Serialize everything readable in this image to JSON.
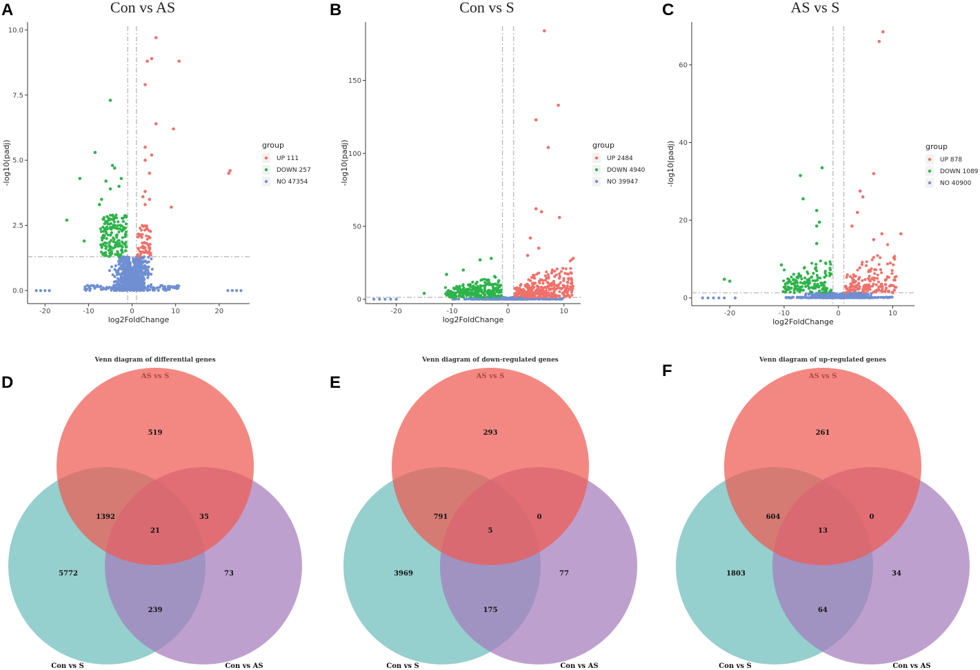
{
  "chart_data": [
    {
      "type": "scatter",
      "panel": "A",
      "title": "Con vs AS",
      "xlabel": "log2FoldChange",
      "ylabel": "-log10(padj)",
      "xlim": [
        -24,
        27
      ],
      "ylim": [
        -0.5,
        10.3
      ],
      "xticks": [
        -20,
        -10,
        0,
        10,
        20
      ],
      "yticks": [
        0.0,
        2.5,
        5.0,
        7.5,
        10.0
      ],
      "ytick_labels": [
        "0.0",
        "2.5",
        "5.0",
        "7.5",
        "10.0"
      ],
      "xtick_labels": [
        "-20",
        "-10",
        "0",
        "10",
        "20"
      ],
      "threshold_x": [
        -1,
        1
      ],
      "threshold_y": 1.3,
      "legend_title": "group",
      "legend": [
        {
          "label": "UP 111",
          "color": "#f0706a"
        },
        {
          "label": "DOWN 257",
          "color": "#2db34a"
        },
        {
          "label": "NO 47354",
          "color": "#6f8fd2"
        }
      ],
      "highlight_points": {
        "up": [
          [
            5.5,
            9.7
          ],
          [
            3.5,
            8.8
          ],
          [
            4.5,
            8.9
          ],
          [
            10.8,
            8.8
          ],
          [
            3,
            7.9
          ],
          [
            9.5,
            6.2
          ],
          [
            5.5,
            6.4
          ],
          [
            3,
            5.5
          ],
          [
            4.5,
            5.2
          ],
          [
            3,
            5
          ],
          [
            4,
            4.5
          ],
          [
            22.5,
            4.6
          ],
          [
            22.2,
            4.5
          ],
          [
            9,
            3.2
          ],
          [
            3,
            3.8
          ],
          [
            2.5,
            3.6
          ],
          [
            4,
            3.5
          ],
          [
            3,
            3.3
          ]
        ],
        "down": [
          [
            -5,
            7.3
          ],
          [
            -8.5,
            5.3
          ],
          [
            -4.5,
            4.8
          ],
          [
            -4,
            4.7
          ],
          [
            -12,
            4.3
          ],
          [
            -2.5,
            4.3
          ],
          [
            -6,
            4.2
          ],
          [
            -3,
            4
          ],
          [
            -5,
            3.9
          ],
          [
            -15,
            2.7
          ],
          [
            -11,
            1.9
          ],
          [
            -7,
            3.5
          ],
          [
            -7.5,
            3.3
          ]
        ],
        "no_outliers": [
          [
            -20,
            0
          ],
          [
            -21,
            0
          ],
          [
            -22,
            0
          ],
          [
            -19,
            0
          ],
          [
            22,
            0
          ],
          [
            23,
            0
          ],
          [
            24,
            0
          ],
          [
            25,
            0
          ]
        ]
      }
    },
    {
      "type": "scatter",
      "panel": "B",
      "title": "Con vs S",
      "xlabel": "log2FoldChange",
      "ylabel": "-log10(padj)",
      "xlim": [
        -25.5,
        13
      ],
      "ylim": [
        -3,
        190
      ],
      "xticks": [
        -20,
        -10,
        0,
        10
      ],
      "yticks": [
        0,
        50,
        100,
        150
      ],
      "ytick_labels": [
        "0",
        "50",
        "100",
        "150"
      ],
      "xtick_labels": [
        "-20",
        "-10",
        "0",
        "10"
      ],
      "threshold_x": [
        -1,
        1
      ],
      "threshold_y": 1.3,
      "legend_title": "group",
      "legend": [
        {
          "label": "UP 2484",
          "color": "#f0706a"
        },
        {
          "label": "DOWN 4940",
          "color": "#2db34a"
        },
        {
          "label": "NO 39947",
          "color": "#6f8fd2"
        }
      ],
      "highlight_points": {
        "up": [
          [
            6.5,
            184
          ],
          [
            9,
            133
          ],
          [
            5,
            123
          ],
          [
            7.2,
            104
          ],
          [
            5,
            62
          ],
          [
            6,
            60
          ],
          [
            9.2,
            56
          ],
          [
            4,
            42
          ],
          [
            5.5,
            35
          ],
          [
            3.5,
            30
          ]
        ],
        "down": [
          [
            -11,
            17
          ],
          [
            -5,
            27
          ],
          [
            -3,
            28
          ],
          [
            -15,
            4
          ],
          [
            -8,
            20
          ]
        ],
        "no_outliers": [
          [
            -22,
            0
          ],
          [
            -23,
            0
          ],
          [
            -24,
            0
          ],
          [
            -21,
            0
          ],
          [
            -20,
            0
          ]
        ]
      }
    },
    {
      "type": "scatter",
      "panel": "C",
      "title": "AS vs S",
      "xlabel": "log2FoldChange",
      "ylabel": "-log10(padj)",
      "xlim": [
        -27,
        14
      ],
      "ylim": [
        -2,
        71
      ],
      "xticks": [
        -20,
        -10,
        0,
        10
      ],
      "yticks": [
        0,
        20,
        40,
        60
      ],
      "ytick_labels": [
        "0",
        "20",
        "40",
        "60"
      ],
      "xtick_labels": [
        "-20",
        "-10",
        "0",
        "10"
      ],
      "threshold_x": [
        -1,
        1
      ],
      "threshold_y": 1.3,
      "legend_title": "group",
      "legend": [
        {
          "label": "UP 878",
          "color": "#f0706a"
        },
        {
          "label": "DOWN 1089",
          "color": "#2db34a"
        },
        {
          "label": "NO 40900",
          "color": "#6f8fd2"
        }
      ],
      "highlight_points": {
        "up": [
          [
            8.2,
            68.5
          ],
          [
            7.5,
            66
          ],
          [
            6.5,
            32
          ],
          [
            4,
            27.5
          ],
          [
            4.5,
            26
          ],
          [
            3.5,
            22
          ],
          [
            2.5,
            18.5
          ],
          [
            8,
            16.5
          ],
          [
            11.5,
            16.5
          ],
          [
            6.5,
            15
          ]
        ],
        "down": [
          [
            -3,
            33.5
          ],
          [
            -7,
            31.5
          ],
          [
            -6.5,
            25.5
          ],
          [
            -4,
            22.5
          ],
          [
            -3.5,
            19.5
          ],
          [
            -4,
            18.5
          ],
          [
            -4,
            14
          ],
          [
            -21,
            4.8
          ],
          [
            -20,
            4.3
          ],
          [
            -10.5,
            8.5
          ]
        ],
        "no_outliers": [
          [
            -22,
            0
          ],
          [
            -23,
            0
          ],
          [
            -24,
            0
          ],
          [
            -21,
            0
          ],
          [
            -25,
            0
          ],
          [
            -19,
            0
          ]
        ]
      }
    },
    {
      "type": "venn",
      "panel": "D",
      "title": "Venn diagram of differential genes",
      "sets": [
        "AS vs S",
        "Con vs S",
        "Con vs AS"
      ],
      "regions": {
        "AS_only": "519",
        "AS_ConS": "1392",
        "AS_ConAS": "35",
        "all": "21",
        "ConS_only": "5772",
        "ConAS_only": "73",
        "ConS_ConAS": "239"
      }
    },
    {
      "type": "venn",
      "panel": "E",
      "title": "Venn diagram of down-regulated genes",
      "sets": [
        "AS vs S",
        "Con vs S",
        "Con vs AS"
      ],
      "regions": {
        "AS_only": "293",
        "AS_ConS": "791",
        "AS_ConAS": "0",
        "all": "5",
        "ConS_only": "3969",
        "ConAS_only": "77",
        "ConS_ConAS": "175"
      }
    },
    {
      "type": "venn",
      "panel": "F",
      "title": "Venn diagram of up-regulated genes",
      "sets": [
        "AS vs S",
        "Con vs S",
        "Con vs AS"
      ],
      "regions": {
        "AS_only": "261",
        "AS_ConS": "604",
        "AS_ConAS": "0",
        "all": "13",
        "ConS_only": "1803",
        "ConAS_only": "34",
        "ConS_ConAS": "64"
      }
    }
  ],
  "colors": {
    "up": "#f0706a",
    "down": "#2db34a",
    "no": "#6f8fd2",
    "venn_top": "#ee5a52",
    "venn_left": "#6cbcbb",
    "venn_right": "#a57bbd"
  }
}
